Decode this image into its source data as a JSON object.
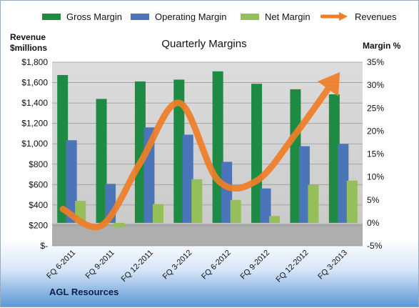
{
  "chart_data": {
    "type": "bar",
    "title": "Quarterly Margins",
    "left_axis_title": [
      "Revenue",
      "$millions"
    ],
    "right_axis_title": "Margin %",
    "company": "AGL Resources",
    "categories": [
      "FQ 6-2011",
      "FQ 9-2011",
      "FQ 12-2011",
      "FQ 3-2012",
      "FQ 6-2012",
      "FQ 9-2012",
      "FQ 12-2012",
      "FQ 3-2013"
    ],
    "left_ticks": [
      "$-",
      "$200",
      "$400",
      "$600",
      "$800",
      "$1,000",
      "$1,200",
      "$1,400",
      "$1,600",
      "$1,800"
    ],
    "right_ticks": [
      "-5%",
      "0%",
      "5%",
      "10%",
      "15%",
      "20%",
      "25%",
      "30%",
      "35%"
    ],
    "ylim_left": [
      0,
      1800
    ],
    "ylim_right": [
      -5,
      35
    ],
    "series": [
      {
        "name": "Gross Margin",
        "axis": "right",
        "color": "#1e8b45",
        "values": [
          32.2,
          27.0,
          30.8,
          31.2,
          33.0,
          30.3,
          29.1,
          28.0
        ]
      },
      {
        "name": "Operating Margin",
        "axis": "right",
        "color": "#4a76b9",
        "values": [
          18.0,
          8.5,
          20.8,
          19.2,
          13.3,
          7.5,
          16.7,
          17.2
        ]
      },
      {
        "name": "Net Margin",
        "axis": "right",
        "color": "#94bf59",
        "values": [
          4.8,
          -1.0,
          4.1,
          9.5,
          5.0,
          1.5,
          8.3,
          9.2
        ]
      },
      {
        "name": "Revenues",
        "axis": "left",
        "color": "#f07e26",
        "type": "line",
        "values": [
          360,
          200,
          820,
          1400,
          640,
          640,
          1100,
          1630
        ]
      }
    ],
    "legend_position": "top",
    "grid": "horizontal"
  }
}
